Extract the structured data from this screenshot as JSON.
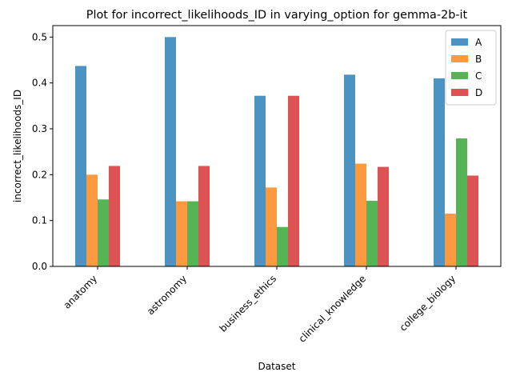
{
  "chart_data": {
    "type": "bar",
    "title": "Plot for incorrect_likelihoods_ID in varying_option for gemma-2b-it",
    "xlabel": "Dataset",
    "ylabel": "incorrect_likelihoods_ID",
    "categories": [
      "anatomy",
      "astronomy",
      "business_ethics",
      "clinical_knowledge",
      "college_biology"
    ],
    "ylim": [
      0,
      0.525
    ],
    "yticks": [
      0.0,
      0.1,
      0.2,
      0.3,
      0.4,
      0.5
    ],
    "ytick_labels": [
      "0.0",
      "0.1",
      "0.2",
      "0.3",
      "0.4",
      "0.5"
    ],
    "series": [
      {
        "name": "A",
        "color": "#1f77b4",
        "values": [
          0.437,
          0.5,
          0.372,
          0.418,
          0.41
        ]
      },
      {
        "name": "B",
        "color": "#ff7f0e",
        "values": [
          0.2,
          0.142,
          0.172,
          0.224,
          0.115
        ]
      },
      {
        "name": "C",
        "color": "#2ca02c",
        "values": [
          0.146,
          0.142,
          0.086,
          0.143,
          0.279
        ]
      },
      {
        "name": "D",
        "color": "#d62728",
        "values": [
          0.219,
          0.219,
          0.372,
          0.217,
          0.198
        ]
      }
    ],
    "legend_position": "top-right",
    "grid": false,
    "bar_opacity": 0.8
  }
}
